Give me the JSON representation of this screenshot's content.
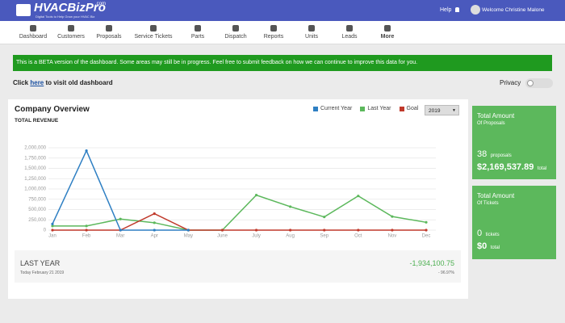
{
  "header": {
    "logo": "HVACBizPro",
    "logo_suffix": ".com",
    "tagline": "Digital Tools to Help Grow your HVAC Biz",
    "help": "Help",
    "welcome": "Welcome Christine Malone"
  },
  "nav": [
    "Dashboard",
    "Customers",
    "Proposals",
    "Service Tickets",
    "Parts",
    "Dispatch",
    "Reports",
    "Units",
    "Leads",
    "More"
  ],
  "banner": "This is a BETA version of the dashboard. Some areas may still be in progress. Feel free to submit feedback on how we can continue to improve this data for you.",
  "old_dashboard": {
    "prefix": "Click",
    "link": "here",
    "suffix": "to visit old dashboard"
  },
  "privacy": "Privacy",
  "overview": {
    "title": "Company Overview",
    "year_select": "2019"
  },
  "chart_data": {
    "type": "line",
    "title": "TOTAL REVENUE",
    "categories": [
      "Jan",
      "Feb",
      "Mar",
      "Apr",
      "May",
      "June",
      "July",
      "Aug",
      "Sep",
      "Oct",
      "Nov",
      "Dec"
    ],
    "series": [
      {
        "name": "Current Year",
        "color": "#2e7fc3",
        "values": [
          150000,
          1930000,
          0,
          0,
          0,
          null,
          null,
          null,
          null,
          null,
          null,
          null
        ]
      },
      {
        "name": "Last Year",
        "color": "#5cb85c",
        "values": [
          100000,
          100000,
          270000,
          180000,
          0,
          0,
          850000,
          570000,
          320000,
          830000,
          330000,
          190000
        ]
      },
      {
        "name": "Goal",
        "color": "#c0392b",
        "values": [
          0,
          0,
          0,
          400000,
          0,
          0,
          0,
          0,
          0,
          0,
          0,
          0
        ]
      }
    ],
    "ylim": [
      0,
      2000000
    ],
    "yticks": [
      0,
      {
        "value": 250000,
        "label": "250,000"
      },
      {
        "value": 500000,
        "label": "500,000"
      },
      {
        "value": 750000,
        "label": "750,000"
      },
      {
        "value": 1000000,
        "label": "1,000,000"
      },
      {
        "value": 1250000,
        "label": "1,250,000"
      },
      {
        "value": 1500000,
        "label": "1,500,000"
      },
      {
        "value": 1750000,
        "label": "1,750,000"
      },
      {
        "value": 2000000,
        "label": "2,000,000"
      }
    ],
    "grid": true
  },
  "summary": {
    "label": "LAST YEAR",
    "date": "Today February 21 2019",
    "amount": "-1,934,100.75",
    "percent": "- 96.97%"
  },
  "cards": [
    {
      "title": "Total Amount",
      "subtitle": "Of Proposals",
      "count": "38",
      "count_label": "proposals",
      "amount": "$2,169,537.89",
      "amount_label": "total"
    },
    {
      "title": "Total Amount",
      "subtitle": "Of Tickets",
      "count": "0",
      "count_label": "tickets",
      "amount": "$0",
      "amount_label": "total"
    }
  ]
}
